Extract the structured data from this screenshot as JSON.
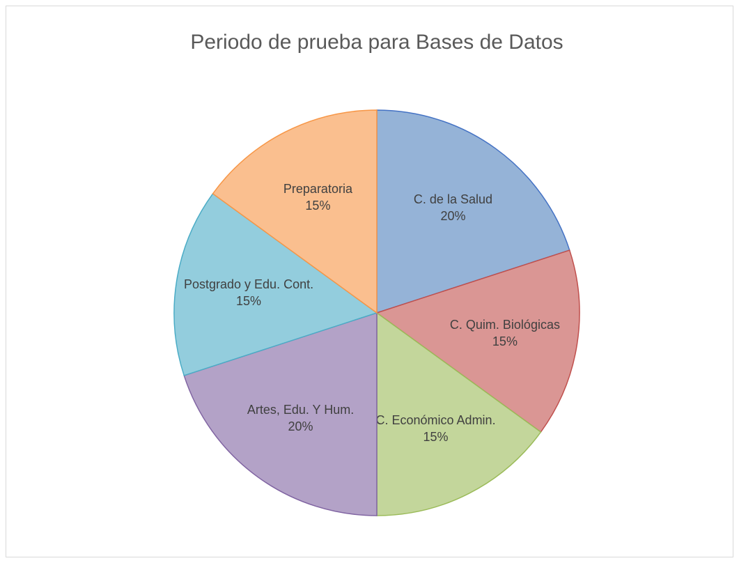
{
  "chart_data": {
    "type": "pie",
    "title": "Periodo de prueba para Bases de Datos",
    "categories": [
      "C. de la Salud",
      "C. Quim. Biológicas",
      "C. Económico Admin.",
      "Artes, Edu. Y Hum.",
      "Postgrado y Edu. Cont.",
      "Preparatoria"
    ],
    "values": [
      20,
      15,
      15,
      20,
      15,
      15
    ],
    "value_labels": [
      "20%",
      "15%",
      "15%",
      "20%",
      "15%",
      "15%"
    ],
    "colors": [
      "#95b3d7",
      "#da9694",
      "#c3d69b",
      "#b3a2c7",
      "#93cddd",
      "#fabf8f"
    ],
    "edge_colors": [
      "#4472c4",
      "#c0504d",
      "#9bbb59",
      "#8064a2",
      "#4bacc6",
      "#f79646"
    ]
  }
}
